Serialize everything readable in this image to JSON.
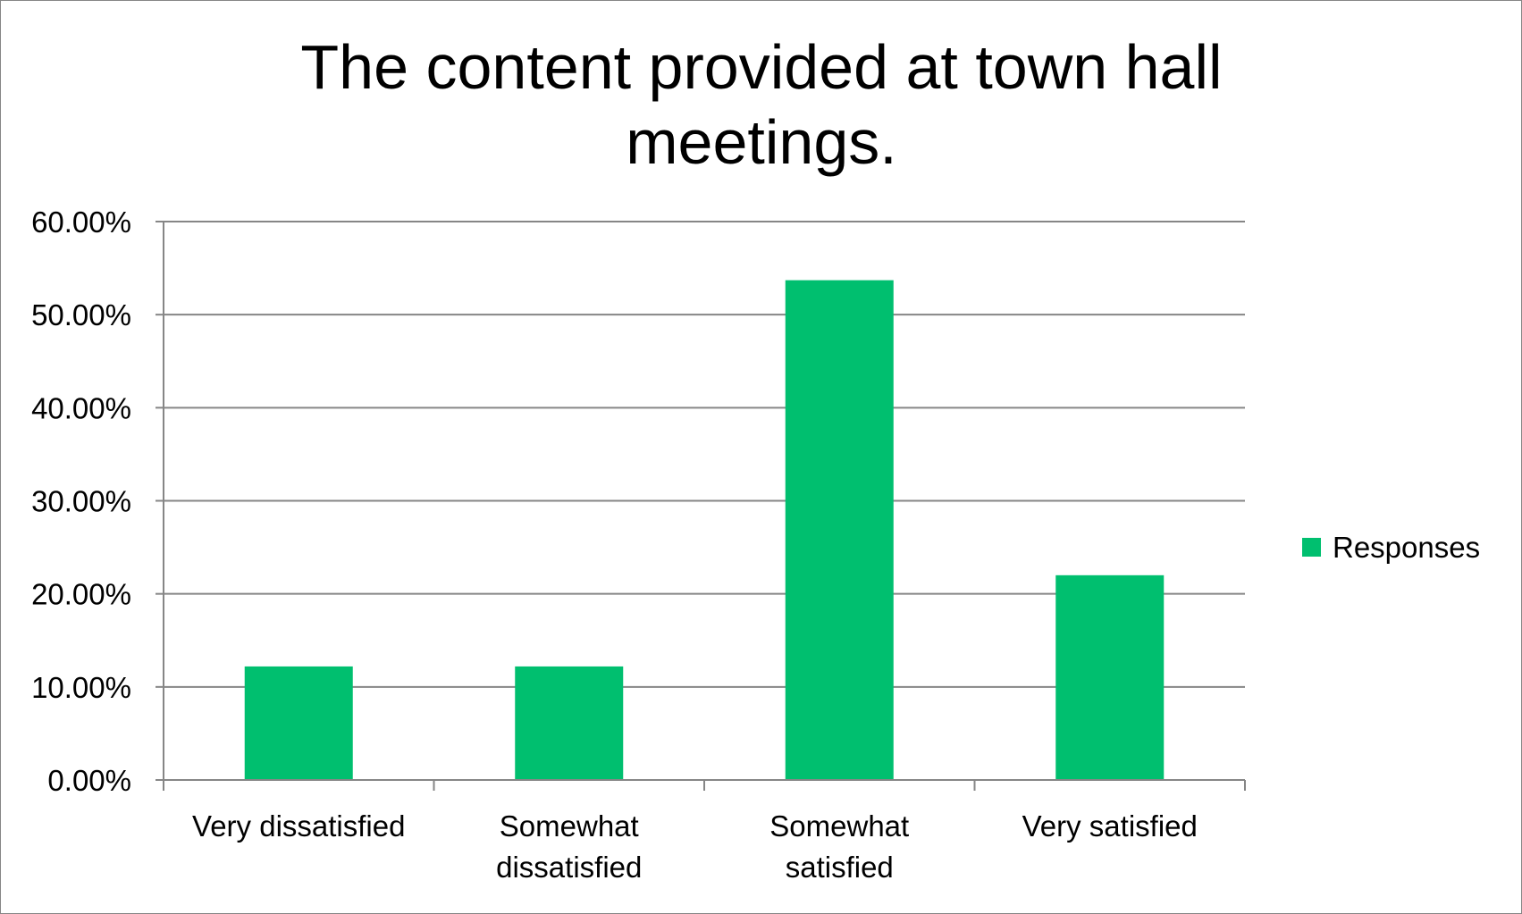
{
  "chart_data": {
    "type": "bar",
    "title_lines": [
      "The content provided at town hall",
      "meetings."
    ],
    "categories": [
      [
        "Very dissatisfied"
      ],
      [
        "Somewhat",
        "dissatisfied"
      ],
      [
        "Somewhat",
        "satisfied"
      ],
      [
        "Very satisfied"
      ]
    ],
    "series": [
      {
        "name": "Responses",
        "color": "#00BF6F",
        "values": [
          12.2,
          12.2,
          53.7,
          22.0
        ]
      }
    ],
    "y_ticks": [
      "0.00%",
      "10.00%",
      "20.00%",
      "30.00%",
      "40.00%",
      "50.00%",
      "60.00%"
    ],
    "ylim": [
      0,
      60
    ],
    "y_unit": "percent",
    "grid": true,
    "legend_position": "right"
  }
}
